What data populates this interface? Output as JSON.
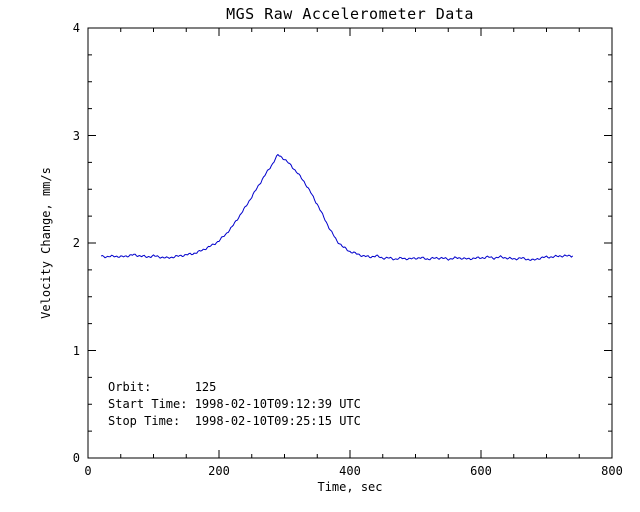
{
  "figure": {
    "background": "#ffffff",
    "axis_color": "#000000",
    "text_color": "#000000"
  },
  "chart_data": {
    "type": "line",
    "title": "MGS Raw Accelerometer Data",
    "xlabel": "Time, sec",
    "ylabel": "Velocity Change, mm/s",
    "xlim": [
      0,
      800
    ],
    "ylim": [
      0,
      4
    ],
    "xticks": [
      0,
      200,
      400,
      600,
      800
    ],
    "yticks": [
      0,
      1,
      2,
      3,
      4
    ],
    "x_minor_step": 50,
    "y_minor_step": 0.25,
    "grid": false,
    "legend": "none",
    "line_color": "#0000cc",
    "series": [
      {
        "name": "velocity-change",
        "x": [
          20,
          30,
          40,
          50,
          60,
          70,
          80,
          90,
          100,
          110,
          120,
          130,
          140,
          150,
          160,
          170,
          180,
          190,
          200,
          210,
          220,
          230,
          240,
          250,
          260,
          270,
          280,
          290,
          300,
          310,
          320,
          330,
          340,
          350,
          360,
          370,
          380,
          390,
          400,
          410,
          420,
          430,
          440,
          450,
          460,
          470,
          480,
          490,
          500,
          510,
          520,
          530,
          540,
          550,
          560,
          570,
          580,
          590,
          600,
          610,
          620,
          630,
          640,
          650,
          660,
          670,
          680,
          690,
          700,
          710,
          720,
          730,
          740
        ],
        "y": [
          1.88,
          1.87,
          1.88,
          1.87,
          1.88,
          1.89,
          1.88,
          1.87,
          1.88,
          1.87,
          1.86,
          1.87,
          1.88,
          1.89,
          1.9,
          1.92,
          1.95,
          1.98,
          2.02,
          2.08,
          2.15,
          2.24,
          2.33,
          2.43,
          2.53,
          2.63,
          2.72,
          2.82,
          2.78,
          2.72,
          2.65,
          2.57,
          2.47,
          2.36,
          2.24,
          2.12,
          2.02,
          1.96,
          1.92,
          1.9,
          1.88,
          1.87,
          1.88,
          1.86,
          1.86,
          1.85,
          1.86,
          1.85,
          1.86,
          1.86,
          1.85,
          1.86,
          1.86,
          1.85,
          1.86,
          1.86,
          1.85,
          1.86,
          1.86,
          1.87,
          1.86,
          1.87,
          1.86,
          1.85,
          1.86,
          1.85,
          1.84,
          1.86,
          1.87,
          1.87,
          1.88,
          1.88,
          1.88
        ]
      }
    ],
    "annotations": [
      "Orbit:      125",
      "Start Time: 1998-02-10T09:12:39 UTC",
      "Stop Time:  1998-02-10T09:25:15 UTC"
    ]
  }
}
